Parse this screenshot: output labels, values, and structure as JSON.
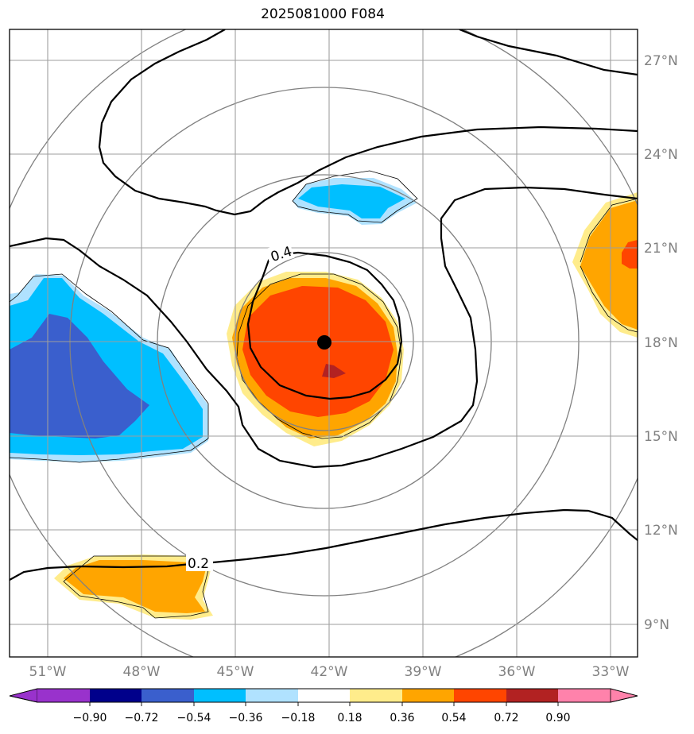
{
  "title": "2025081000 F084",
  "map": {
    "lon_labels": [
      "51°W",
      "48°W",
      "45°W",
      "42°W",
      "39°W",
      "36°W",
      "33°W"
    ],
    "lat_labels": [
      "27°N",
      "24°N",
      "21°N",
      "18°N",
      "15°N",
      "12°N",
      "9°N"
    ],
    "lon_range": [
      -52.2,
      -32.2
    ],
    "lat_range": [
      8.0,
      28.0
    ],
    "center_marker": {
      "lon": -42.2,
      "lat": 18.0
    },
    "contour_labels": [
      "0.4",
      "0.2"
    ],
    "colors": {
      "grid": "#9e9e9e",
      "range_rings": "#808080",
      "contour": "#000000"
    }
  },
  "colorbar": {
    "ticks": [
      "−0.90",
      "−0.72",
      "−0.54",
      "−0.36",
      "−0.18",
      "0.18",
      "0.36",
      "0.54",
      "0.72",
      "0.90"
    ],
    "colors": [
      "#9932cc",
      "#00008b",
      "#3a5fcd",
      "#00bfff",
      "#b0e2ff",
      "#ffffff",
      "#ffec8b",
      "#ffa500",
      "#ff4500",
      "#b22222",
      "#ff82ab"
    ]
  }
}
